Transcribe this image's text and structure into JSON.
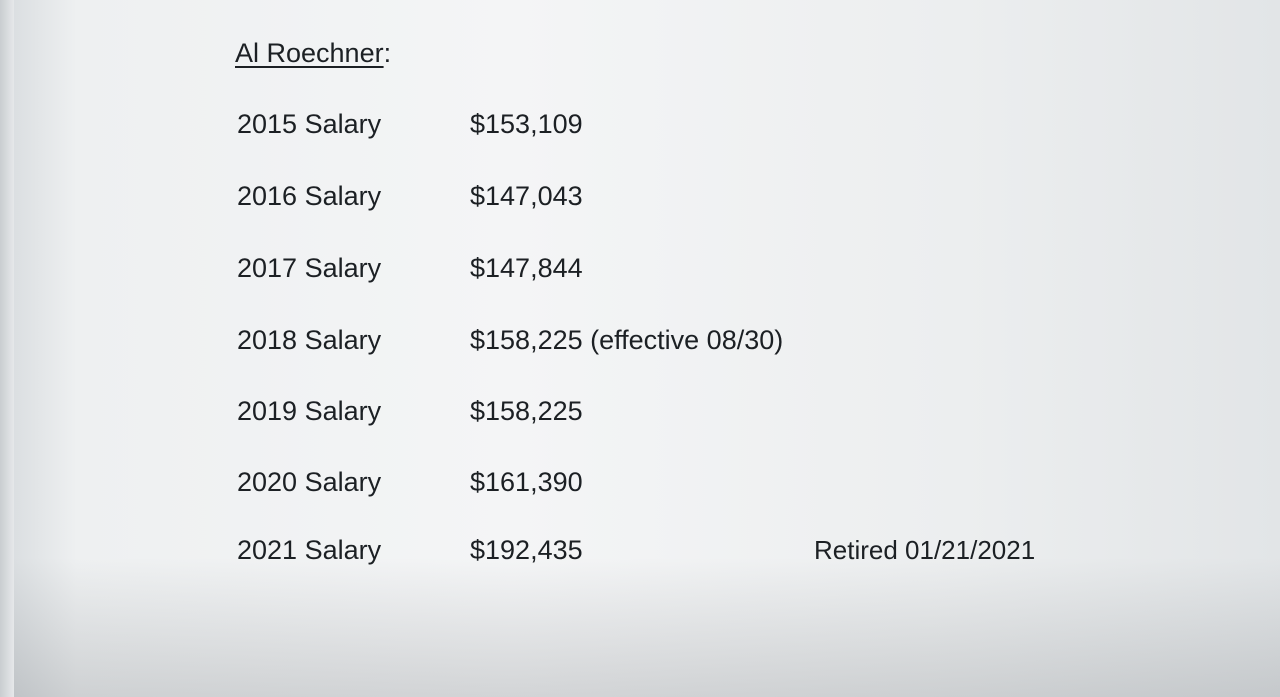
{
  "heading": {
    "name": "Al Roechner",
    "suffix": ":"
  },
  "rows": [
    {
      "label": "2015 Salary",
      "value": "$153,109"
    },
    {
      "label": "2016 Salary",
      "value": "$147,043"
    },
    {
      "label": "2017 Salary",
      "value": "$147,844"
    },
    {
      "label": "2018 Salary",
      "value": "$158,225 (effective 08/30)"
    },
    {
      "label": "2019 Salary",
      "value": "$158,225"
    },
    {
      "label": "2020 Salary",
      "value": "$161,390"
    },
    {
      "label": "2021 Salary",
      "value": "$192,435",
      "note": "Retired 01/21/2021"
    }
  ]
}
